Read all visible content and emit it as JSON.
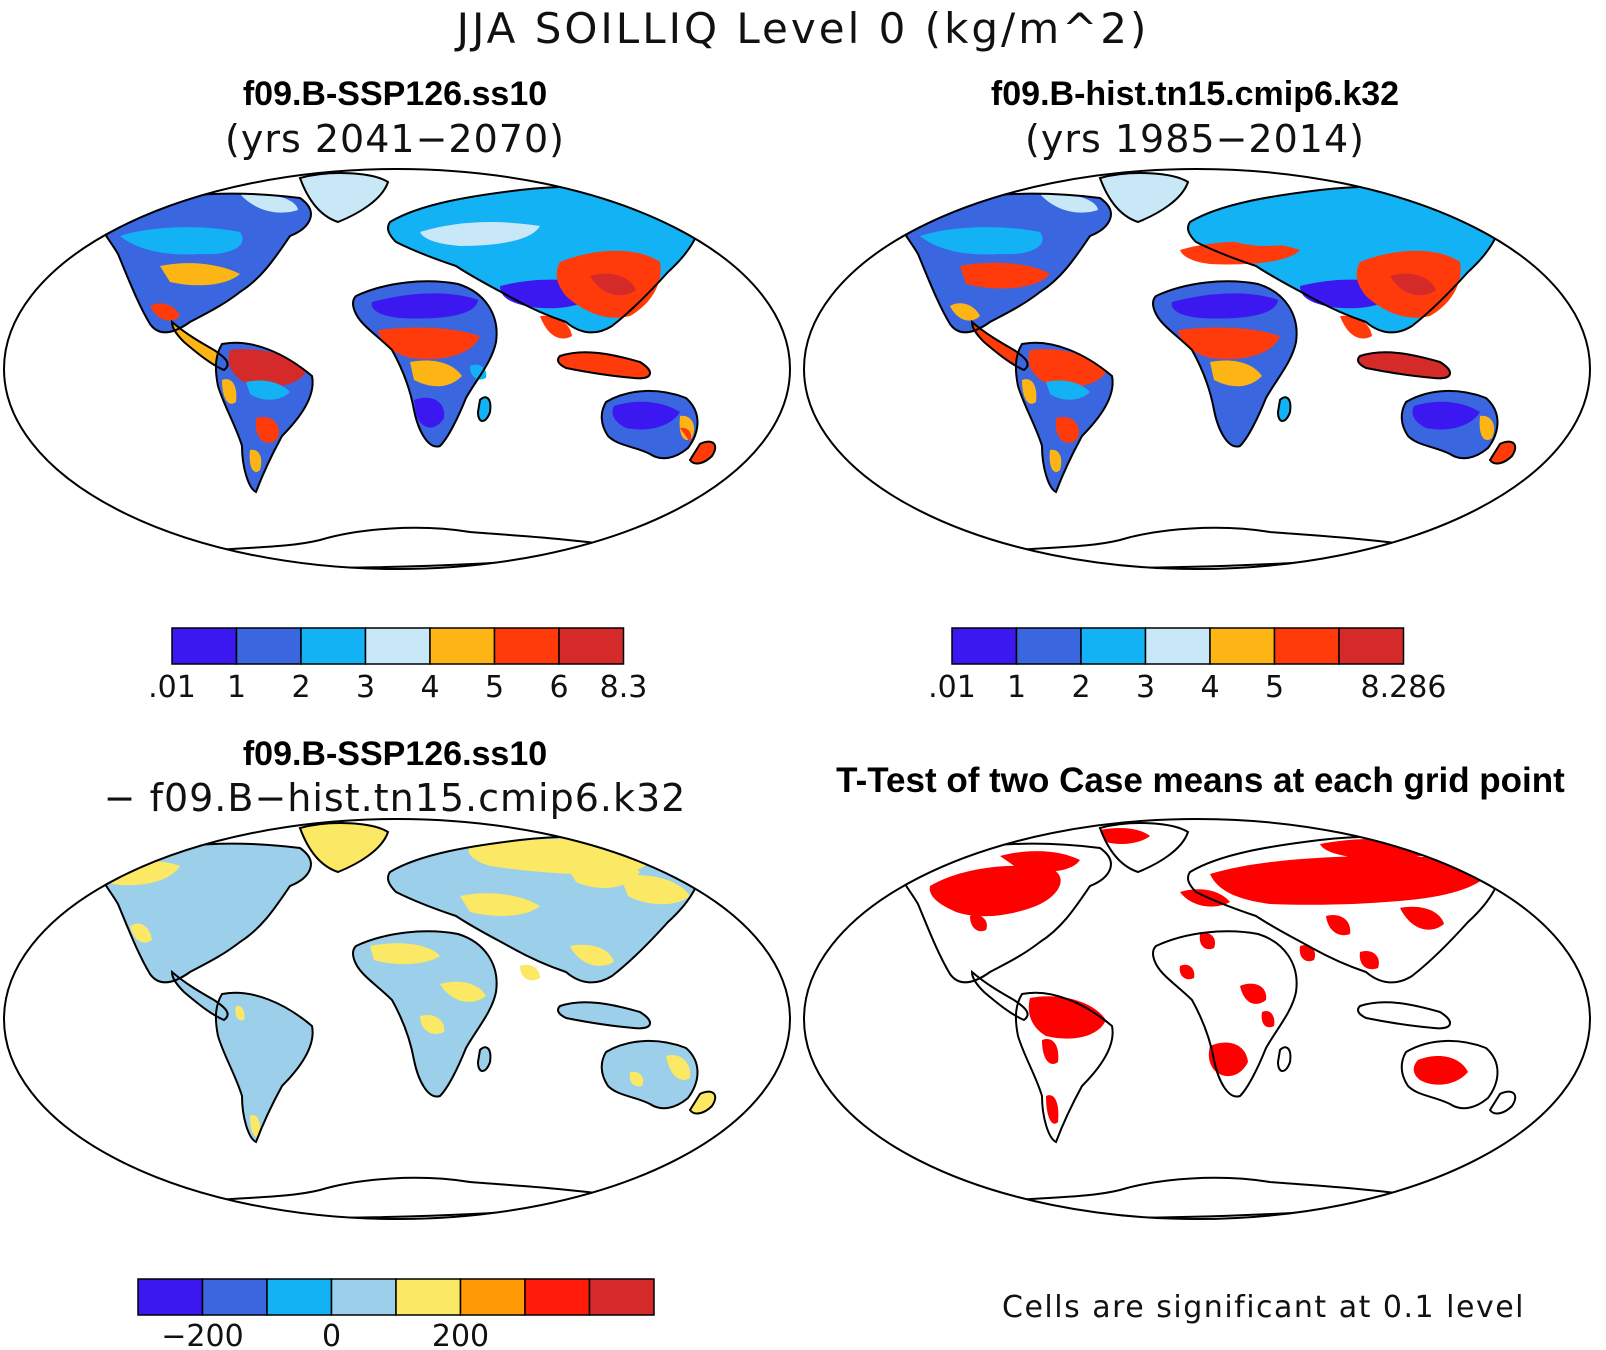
{
  "title": "JJA SOILLIQ Level 0 (kg/m^2)",
  "panels": [
    {
      "id": "future",
      "title_line1": "f09.B-SSP126.ss10",
      "title_line2": "(yrs 2041−2070)"
    },
    {
      "id": "historical",
      "title_line1": "f09.B-hist.tn15.cmip6.k32",
      "title_line2": "(yrs 1985−2014)"
    },
    {
      "id": "difference",
      "title_line1": "f09.B-SSP126.ss10",
      "title_line2": "− f09.B−hist.tn15.cmip6.k32"
    },
    {
      "id": "ttest",
      "title_line1": "T-Test of two Case means at each grid point",
      "note": "Cells are significant at 0.1 level"
    }
  ],
  "colorbars": [
    {
      "panel": "future",
      "colors": [
        "#3b17f0",
        "#3a66e0",
        "#13b2f5",
        "#c8e8f8",
        "#fdb515",
        "#ff3b0b",
        "#d42a2a"
      ],
      "labels": [
        ".01",
        "1",
        "2",
        "3",
        "4",
        "5",
        "6",
        "8.3"
      ]
    },
    {
      "panel": "historical",
      "colors": [
        "#3b17f0",
        "#3a66e0",
        "#13b2f5",
        "#c8e8f8",
        "#fdb515",
        "#ff3b0b",
        "#d42a2a"
      ],
      "labels": [
        ".01",
        "1",
        "2",
        "3",
        "4",
        "5",
        "",
        "8.286"
      ]
    },
    {
      "panel": "difference",
      "colors": [
        "#3b17f0",
        "#3a66e0",
        "#13b2f5",
        "#9ccfea",
        "#fbe864",
        "#ff9a05",
        "#ff1a0a",
        "#d42a2a"
      ],
      "labels": [
        "",
        "−200",
        "",
        "0",
        "",
        "200",
        "",
        "",
        ""
      ]
    }
  ],
  "legend_colors": {
    "land_outline": "#000000",
    "significant_cells": "#ff0000",
    "difference_negative": "#9ccfea",
    "difference_positive": "#fbe864"
  }
}
